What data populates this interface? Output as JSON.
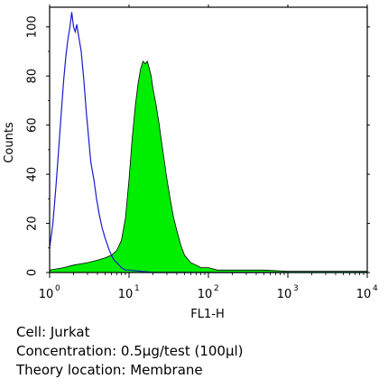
{
  "caption": {
    "cell": "Cell: Jurkat",
    "concentration": "Concentration: 0.5μg/test (100μl)",
    "location": "Theory location: Membrane"
  },
  "chart_data": {
    "type": "area",
    "title": "",
    "xlabel": "FL1-H",
    "ylabel": "Counts",
    "x_scale": "log",
    "xlim": [
      1,
      10000
    ],
    "ylim": [
      0,
      108
    ],
    "x_ticks": [
      {
        "base": "10",
        "exp": "0"
      },
      {
        "base": "10",
        "exp": "1"
      },
      {
        "base": "10",
        "exp": "2"
      },
      {
        "base": "10",
        "exp": "3"
      },
      {
        "base": "10",
        "exp": "4"
      }
    ],
    "y_ticks": [
      "0",
      "20",
      "40",
      "60",
      "80",
      "100"
    ],
    "grid": false,
    "legend": "none",
    "series": [
      {
        "style": "outline",
        "color": "#1a1acc",
        "x": [
          1.0,
          1.1,
          1.2,
          1.3,
          1.4,
          1.5,
          1.6,
          1.7,
          1.8,
          1.9,
          2.0,
          2.1,
          2.2,
          2.3,
          2.5,
          2.7,
          2.9,
          3.1,
          3.3,
          3.6,
          3.9,
          4.2,
          4.6,
          5.0,
          5.5,
          6.0,
          6.5,
          7.0,
          7.5,
          8.0,
          9.0,
          10,
          20,
          50,
          100,
          1000,
          10000
        ],
        "y": [
          10,
          20,
          35,
          50,
          65,
          78,
          88,
          95,
          100,
          106,
          100,
          98,
          101,
          97,
          90,
          78,
          65,
          55,
          45,
          38,
          30,
          24,
          18,
          14,
          10,
          7,
          5,
          4,
          3,
          2,
          1,
          1,
          0,
          0,
          0,
          0,
          0
        ]
      },
      {
        "style": "filled",
        "color": "#00ee00",
        "x": [
          1.0,
          1.5,
          2.0,
          3.0,
          4.0,
          5.0,
          6.0,
          7.0,
          8.0,
          9.0,
          10,
          11,
          12,
          13,
          14,
          15,
          16,
          17,
          18,
          19,
          20,
          22,
          24,
          26,
          28,
          30,
          33,
          36,
          40,
          45,
          50,
          60,
          70,
          80,
          100,
          130,
          200,
          500,
          1000,
          3000,
          10000
        ],
        "y": [
          1,
          2,
          3,
          4,
          5,
          6,
          7,
          9,
          13,
          22,
          38,
          55,
          68,
          77,
          83,
          86,
          85,
          86,
          83,
          80,
          75,
          68,
          60,
          52,
          45,
          38,
          30,
          23,
          17,
          11,
          7,
          4,
          3,
          2,
          2,
          1,
          1,
          1,
          0.5,
          0.5,
          0.5
        ]
      }
    ]
  }
}
